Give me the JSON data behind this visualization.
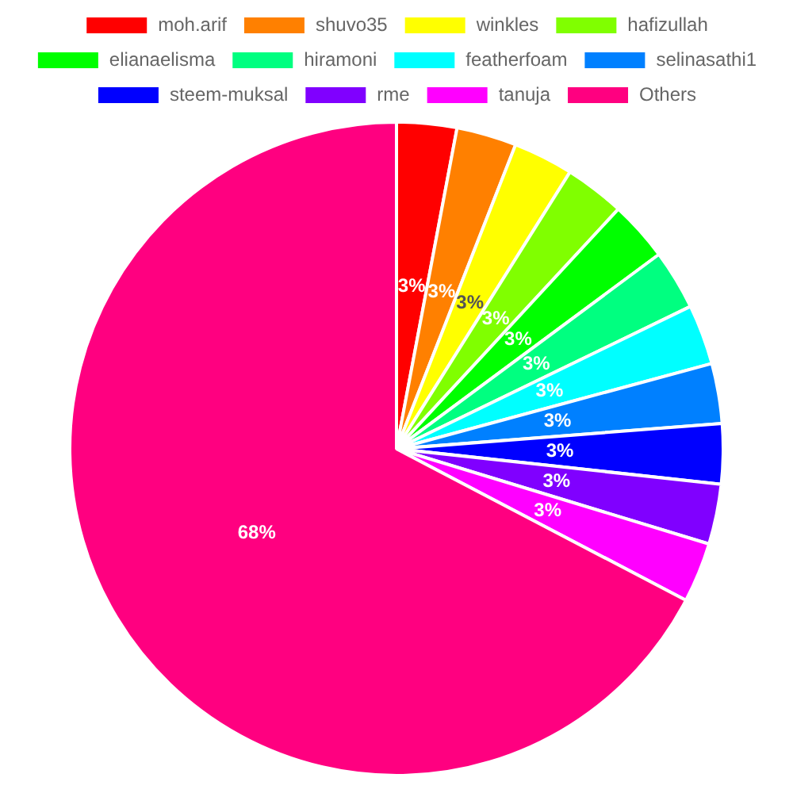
{
  "chart_data": {
    "type": "pie",
    "categories": [
      "moh.arif",
      "shuvo35",
      "winkles",
      "hafizullah",
      "elianaelisma",
      "hiramoni",
      "featherfoam",
      "selinasathi1",
      "steem-muksal",
      "rme",
      "tanuja",
      "Others"
    ],
    "values": [
      3,
      3,
      3,
      3,
      3,
      3,
      3,
      3,
      3,
      3,
      3,
      68
    ],
    "colors": [
      "#ff0000",
      "#ff8000",
      "#ffff00",
      "#80ff00",
      "#00ff00",
      "#00ff80",
      "#00ffff",
      "#0080ff",
      "#0000ff",
      "#8000ff",
      "#ff00ff",
      "#ff0080"
    ],
    "value_labels": [
      "3%",
      "3%",
      "3%",
      "3%",
      "3%",
      "3%",
      "3%",
      "3%",
      "3%",
      "3%",
      "3%",
      "68%"
    ],
    "legend": "top"
  }
}
